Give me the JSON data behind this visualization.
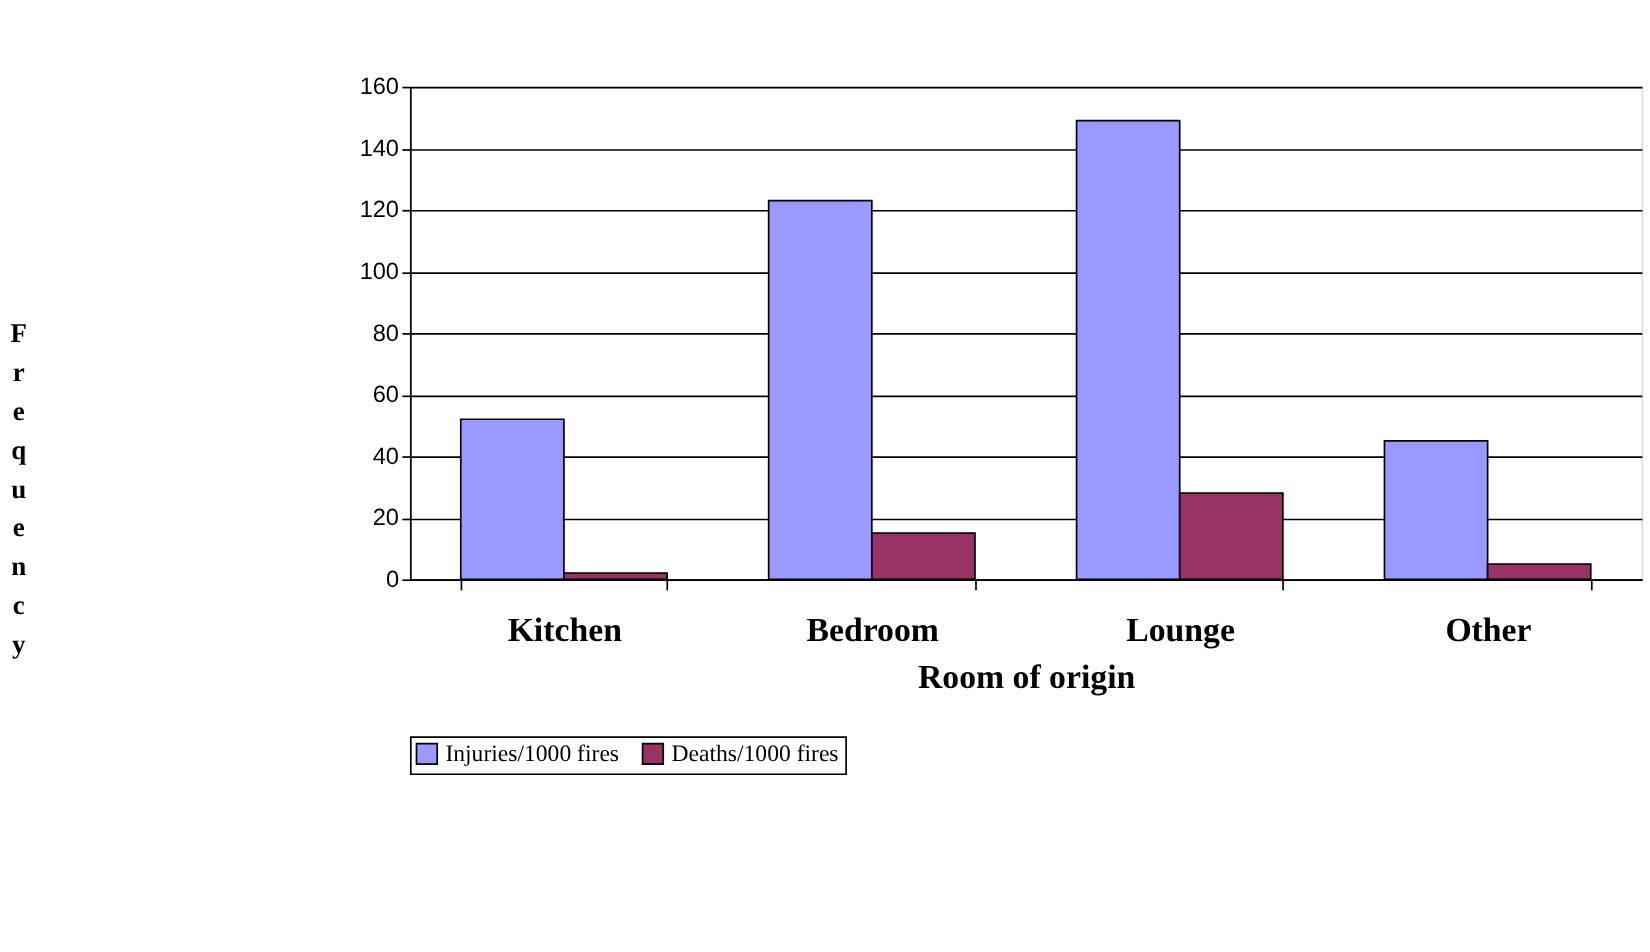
{
  "chart_data": {
    "type": "bar",
    "xlabel": "Room of origin",
    "ylabel": "Frequency",
    "categories": [
      "Kitchen",
      "Bedroom",
      "Lounge",
      "Other"
    ],
    "series": [
      {
        "name": "Injuries/1000 fires",
        "color": "#9999ff",
        "values": [
          52,
          123,
          149,
          45
        ]
      },
      {
        "name": "Deaths/1000 fires",
        "color": "#993366",
        "values": [
          2,
          15,
          28,
          5
        ]
      }
    ],
    "ylim": [
      0,
      160
    ],
    "yticks": [
      0,
      20,
      40,
      60,
      80,
      100,
      120,
      140,
      160
    ],
    "grid": "y",
    "legend": "bottom"
  }
}
